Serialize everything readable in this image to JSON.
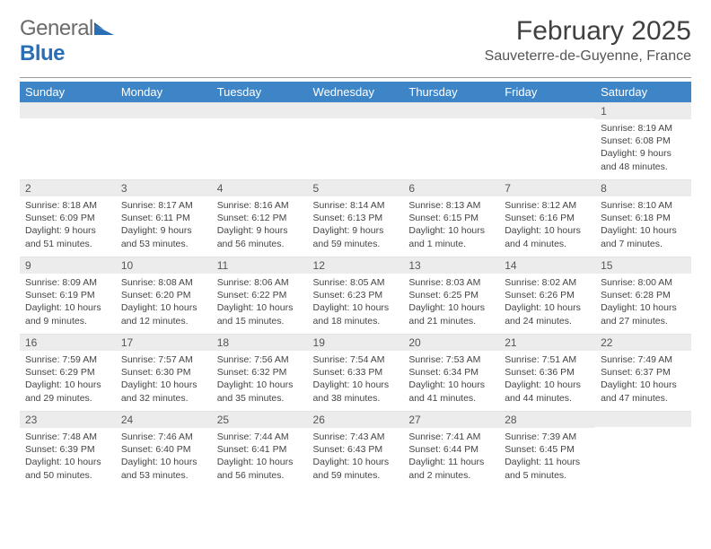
{
  "logo": {
    "general": "General",
    "blue": "Blue"
  },
  "title": "February 2025",
  "location": "Sauveterre-de-Guyenne, France",
  "colors": {
    "header_bg": "#3d85c6",
    "header_text": "#ffffff",
    "daynum_bg": "#ececec",
    "logo_general": "#6b6b6b",
    "logo_blue": "#2a6fb5",
    "body_text": "#444444"
  },
  "day_names": [
    "Sunday",
    "Monday",
    "Tuesday",
    "Wednesday",
    "Thursday",
    "Friday",
    "Saturday"
  ],
  "weeks": [
    [
      null,
      null,
      null,
      null,
      null,
      null,
      {
        "n": "1",
        "sr": "Sunrise: 8:19 AM",
        "ss": "Sunset: 6:08 PM",
        "d1": "Daylight: 9 hours",
        "d2": "and 48 minutes."
      }
    ],
    [
      {
        "n": "2",
        "sr": "Sunrise: 8:18 AM",
        "ss": "Sunset: 6:09 PM",
        "d1": "Daylight: 9 hours",
        "d2": "and 51 minutes."
      },
      {
        "n": "3",
        "sr": "Sunrise: 8:17 AM",
        "ss": "Sunset: 6:11 PM",
        "d1": "Daylight: 9 hours",
        "d2": "and 53 minutes."
      },
      {
        "n": "4",
        "sr": "Sunrise: 8:16 AM",
        "ss": "Sunset: 6:12 PM",
        "d1": "Daylight: 9 hours",
        "d2": "and 56 minutes."
      },
      {
        "n": "5",
        "sr": "Sunrise: 8:14 AM",
        "ss": "Sunset: 6:13 PM",
        "d1": "Daylight: 9 hours",
        "d2": "and 59 minutes."
      },
      {
        "n": "6",
        "sr": "Sunrise: 8:13 AM",
        "ss": "Sunset: 6:15 PM",
        "d1": "Daylight: 10 hours",
        "d2": "and 1 minute."
      },
      {
        "n": "7",
        "sr": "Sunrise: 8:12 AM",
        "ss": "Sunset: 6:16 PM",
        "d1": "Daylight: 10 hours",
        "d2": "and 4 minutes."
      },
      {
        "n": "8",
        "sr": "Sunrise: 8:10 AM",
        "ss": "Sunset: 6:18 PM",
        "d1": "Daylight: 10 hours",
        "d2": "and 7 minutes."
      }
    ],
    [
      {
        "n": "9",
        "sr": "Sunrise: 8:09 AM",
        "ss": "Sunset: 6:19 PM",
        "d1": "Daylight: 10 hours",
        "d2": "and 9 minutes."
      },
      {
        "n": "10",
        "sr": "Sunrise: 8:08 AM",
        "ss": "Sunset: 6:20 PM",
        "d1": "Daylight: 10 hours",
        "d2": "and 12 minutes."
      },
      {
        "n": "11",
        "sr": "Sunrise: 8:06 AM",
        "ss": "Sunset: 6:22 PM",
        "d1": "Daylight: 10 hours",
        "d2": "and 15 minutes."
      },
      {
        "n": "12",
        "sr": "Sunrise: 8:05 AM",
        "ss": "Sunset: 6:23 PM",
        "d1": "Daylight: 10 hours",
        "d2": "and 18 minutes."
      },
      {
        "n": "13",
        "sr": "Sunrise: 8:03 AM",
        "ss": "Sunset: 6:25 PM",
        "d1": "Daylight: 10 hours",
        "d2": "and 21 minutes."
      },
      {
        "n": "14",
        "sr": "Sunrise: 8:02 AM",
        "ss": "Sunset: 6:26 PM",
        "d1": "Daylight: 10 hours",
        "d2": "and 24 minutes."
      },
      {
        "n": "15",
        "sr": "Sunrise: 8:00 AM",
        "ss": "Sunset: 6:28 PM",
        "d1": "Daylight: 10 hours",
        "d2": "and 27 minutes."
      }
    ],
    [
      {
        "n": "16",
        "sr": "Sunrise: 7:59 AM",
        "ss": "Sunset: 6:29 PM",
        "d1": "Daylight: 10 hours",
        "d2": "and 29 minutes."
      },
      {
        "n": "17",
        "sr": "Sunrise: 7:57 AM",
        "ss": "Sunset: 6:30 PM",
        "d1": "Daylight: 10 hours",
        "d2": "and 32 minutes."
      },
      {
        "n": "18",
        "sr": "Sunrise: 7:56 AM",
        "ss": "Sunset: 6:32 PM",
        "d1": "Daylight: 10 hours",
        "d2": "and 35 minutes."
      },
      {
        "n": "19",
        "sr": "Sunrise: 7:54 AM",
        "ss": "Sunset: 6:33 PM",
        "d1": "Daylight: 10 hours",
        "d2": "and 38 minutes."
      },
      {
        "n": "20",
        "sr": "Sunrise: 7:53 AM",
        "ss": "Sunset: 6:34 PM",
        "d1": "Daylight: 10 hours",
        "d2": "and 41 minutes."
      },
      {
        "n": "21",
        "sr": "Sunrise: 7:51 AM",
        "ss": "Sunset: 6:36 PM",
        "d1": "Daylight: 10 hours",
        "d2": "and 44 minutes."
      },
      {
        "n": "22",
        "sr": "Sunrise: 7:49 AM",
        "ss": "Sunset: 6:37 PM",
        "d1": "Daylight: 10 hours",
        "d2": "and 47 minutes."
      }
    ],
    [
      {
        "n": "23",
        "sr": "Sunrise: 7:48 AM",
        "ss": "Sunset: 6:39 PM",
        "d1": "Daylight: 10 hours",
        "d2": "and 50 minutes."
      },
      {
        "n": "24",
        "sr": "Sunrise: 7:46 AM",
        "ss": "Sunset: 6:40 PM",
        "d1": "Daylight: 10 hours",
        "d2": "and 53 minutes."
      },
      {
        "n": "25",
        "sr": "Sunrise: 7:44 AM",
        "ss": "Sunset: 6:41 PM",
        "d1": "Daylight: 10 hours",
        "d2": "and 56 minutes."
      },
      {
        "n": "26",
        "sr": "Sunrise: 7:43 AM",
        "ss": "Sunset: 6:43 PM",
        "d1": "Daylight: 10 hours",
        "d2": "and 59 minutes."
      },
      {
        "n": "27",
        "sr": "Sunrise: 7:41 AM",
        "ss": "Sunset: 6:44 PM",
        "d1": "Daylight: 11 hours",
        "d2": "and 2 minutes."
      },
      {
        "n": "28",
        "sr": "Sunrise: 7:39 AM",
        "ss": "Sunset: 6:45 PM",
        "d1": "Daylight: 11 hours",
        "d2": "and 5 minutes."
      },
      null
    ]
  ]
}
